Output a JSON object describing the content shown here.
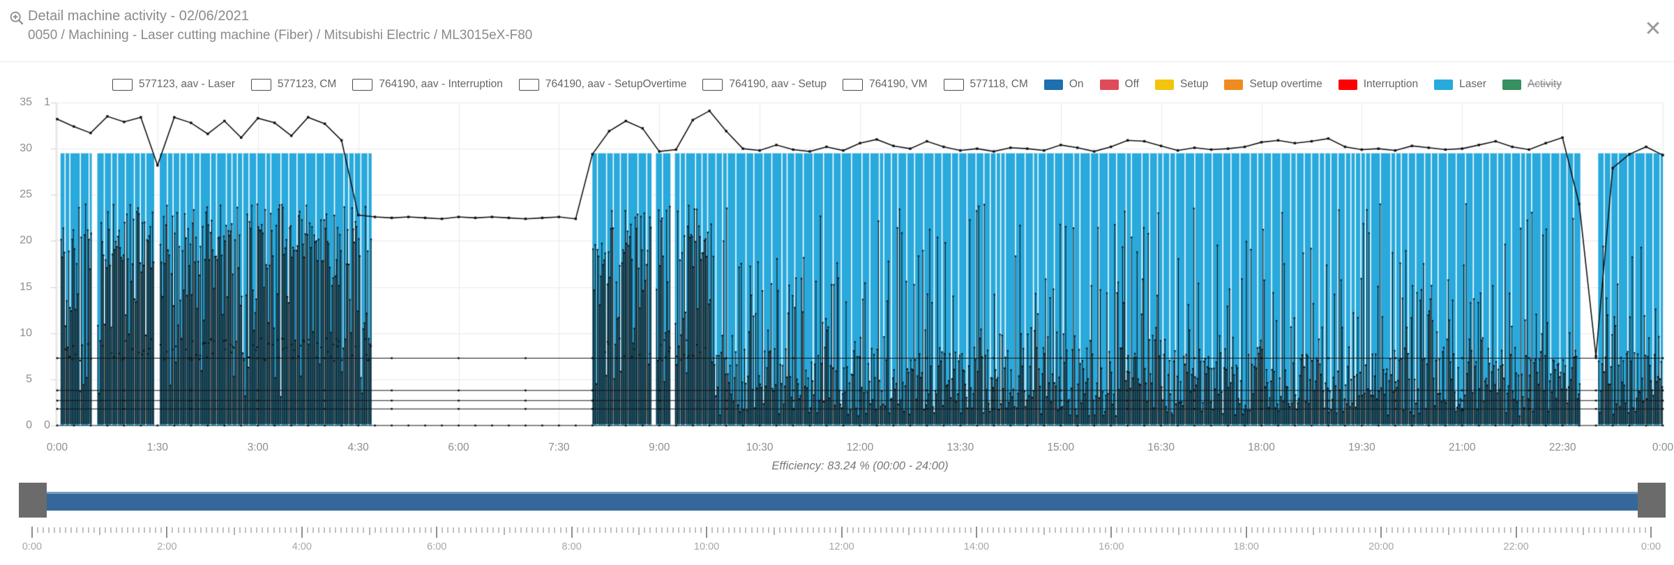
{
  "header": {
    "title": "Detail machine activity - 02/06/2021",
    "subtitle": "0050 / Machining - Laser cutting machine (Fiber) / Mitsubishi Electric / ML3015eX-F80",
    "close_glyph": "✕"
  },
  "legend": {
    "items": [
      {
        "label": "577123, aav - Laser",
        "kind": "outline"
      },
      {
        "label": "577123, CM",
        "kind": "outline"
      },
      {
        "label": "764190, aav - Interruption",
        "kind": "outline"
      },
      {
        "label": "764190, aav - SetupOvertime",
        "kind": "outline"
      },
      {
        "label": "764190, aav - Setup",
        "kind": "outline"
      },
      {
        "label": "764190, VM",
        "kind": "outline"
      },
      {
        "label": "577118, CM",
        "kind": "outline"
      },
      {
        "label": "On",
        "kind": "fill",
        "color": "#1D6FAE"
      },
      {
        "label": "Off",
        "kind": "fill",
        "color": "#E04B5C"
      },
      {
        "label": "Setup",
        "kind": "fill",
        "color": "#F2C40D"
      },
      {
        "label": "Setup overtime",
        "kind": "fill",
        "color": "#EE8C22"
      },
      {
        "label": "Interruption",
        "kind": "fill",
        "color": "#FF0000"
      },
      {
        "label": "Laser",
        "kind": "fill",
        "color": "#29A9DC"
      },
      {
        "label": "Activity",
        "kind": "fill",
        "color": "#35915F",
        "disabled": true
      }
    ]
  },
  "chart_data": {
    "type": "composite-time-series (state bars + count lines + per-minute spikes)",
    "title": "",
    "x_axis": {
      "start": "0:00",
      "end": "24:00",
      "tick_interval_min": 90,
      "tick_labels": [
        "0:00",
        "1:30",
        "3:00",
        "4:30",
        "6:00",
        "7:30",
        "9:00",
        "10:30",
        "12:00",
        "13:30",
        "15:00",
        "16:30",
        "18:00",
        "19:30",
        "21:00",
        "22:30",
        "0:00"
      ]
    },
    "y_axis": {
      "min": 0,
      "max": 35,
      "tick_values": [
        35,
        30,
        25,
        20,
        15,
        10,
        5,
        0
      ]
    },
    "y2_axis": {
      "tick_labels": [
        "1",
        "0"
      ]
    },
    "grid": true,
    "laser_band": {
      "name": "Laser (On state)",
      "color": "#29A9DC",
      "top_value": 29.5,
      "segments_min": [
        [
          3,
          31
        ],
        [
          36,
          87
        ],
        [
          92,
          282
        ],
        [
          480,
          533
        ],
        [
          537,
          550
        ],
        [
          554,
          1366
        ],
        [
          1382,
          1440
        ]
      ]
    },
    "cm_line": {
      "name": "577123, CM",
      "interval_min": 15,
      "values": [
        33.2,
        32.4,
        31.7,
        33.5,
        32.9,
        33.4,
        28.2,
        33.4,
        32.8,
        31.6,
        33.0,
        31.2,
        33.3,
        32.8,
        31.4,
        33.4,
        32.7,
        30.9,
        22.8,
        22.6,
        22.5,
        22.6,
        22.5,
        22.4,
        22.6,
        22.5,
        22.6,
        22.5,
        22.4,
        22.5,
        22.6,
        22.4,
        29.4,
        31.9,
        33.0,
        32.2,
        29.7,
        29.9,
        33.1,
        34.1,
        31.9,
        30.0,
        29.8,
        30.4,
        29.9,
        29.7,
        30.2,
        29.8,
        30.6,
        31.0,
        30.3,
        30.0,
        30.8,
        30.2,
        29.8,
        30.0,
        29.7,
        30.1,
        30.0,
        29.8,
        30.4,
        30.1,
        29.7,
        30.2,
        30.9,
        30.8,
        30.3,
        29.8,
        30.1,
        29.9,
        30.0,
        30.2,
        30.7,
        30.9,
        30.6,
        30.8,
        31.1,
        30.2,
        29.9,
        30.0,
        29.8,
        30.3,
        30.1,
        29.9,
        30.0,
        30.4,
        30.8,
        30.2,
        29.9,
        30.6,
        31.2,
        24.0,
        7.5,
        27.9,
        29.4,
        30.2,
        29.3
      ]
    },
    "flat_line_values": [
      7.3,
      3.8,
      2.7,
      1.8,
      0
    ],
    "spike_series": {
      "name": "577123, aav - Laser (per-minute)",
      "resolution_min": 1,
      "regions": [
        {
          "start_min": 3,
          "end_min": 590,
          "style": "dense",
          "top_range": [
            17,
            24
          ],
          "mid_range": [
            8,
            17
          ],
          "low_range": [
            3,
            8
          ]
        },
        {
          "start_min": 590,
          "end_min": 1366,
          "style": "sparse",
          "base_range": [
            1,
            8.5
          ],
          "mid_range": [
            9,
            16
          ],
          "tall_range": [
            17,
            24
          ]
        },
        {
          "start_min": 1382,
          "end_min": 1440,
          "style": "sparse2",
          "base_range": [
            1,
            8
          ],
          "mid_range": [
            8,
            14
          ],
          "tall_range": [
            15,
            22
          ]
        }
      ]
    },
    "efficiency_label": "Efficiency: 83.24 % (00:00 - 24:00)"
  },
  "slider": {
    "bar_color": "#35689A",
    "handle_color": "#6B6B6B"
  },
  "ruler": {
    "labels": [
      "0:00",
      "2:00",
      "4:00",
      "6:00",
      "8:00",
      "10:00",
      "12:00",
      "14:00",
      "16:00",
      "18:00",
      "20:00",
      "22:00",
      "0:00"
    ],
    "minor_tick_min": 5,
    "hour_tick_min": 60,
    "major_tick_min": 120
  }
}
